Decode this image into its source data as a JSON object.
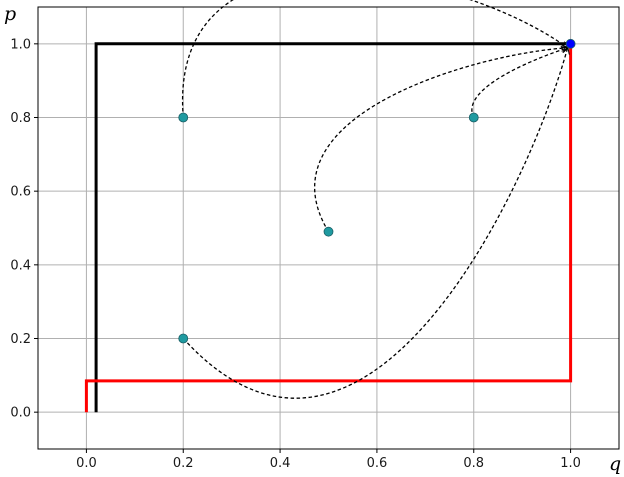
{
  "chart_data": {
    "type": "line",
    "title": "",
    "xlabel": "q",
    "ylabel": "p",
    "xlim": [
      -0.1,
      1.1
    ],
    "ylim": [
      -0.1,
      1.1
    ],
    "x_ticks": [
      "0.0",
      "0.2",
      "0.4",
      "0.6",
      "0.8",
      "1.0"
    ],
    "y_ticks": [
      "0.0",
      "0.2",
      "0.4",
      "0.6",
      "0.8",
      "1.0"
    ],
    "grid": true,
    "legend": "none",
    "series": [
      {
        "color": "#000000",
        "style": "solid",
        "points": [
          [
            0.02,
            0.0
          ],
          [
            0.02,
            1.0
          ],
          [
            1.0,
            1.0
          ]
        ]
      },
      {
        "color": "#ff0000",
        "style": "solid",
        "points": [
          [
            0.0,
            0.0
          ],
          [
            0.0,
            0.085
          ],
          [
            1.0,
            0.085
          ],
          [
            1.0,
            1.0
          ]
        ]
      }
    ],
    "points": [
      {
        "x": 0.2,
        "y": 0.8,
        "color": "#1f9aa0"
      },
      {
        "x": 0.8,
        "y": 0.8,
        "color": "#1f9aa0"
      },
      {
        "x": 0.5,
        "y": 0.49,
        "color": "#1f9aa0"
      },
      {
        "x": 0.2,
        "y": 0.2,
        "color": "#1f9aa0"
      },
      {
        "x": 1.0,
        "y": 1.0,
        "color": "#0000ff"
      }
    ],
    "arrows": [
      {
        "from": [
          0.2,
          0.8
        ],
        "to": [
          1.0,
          1.0
        ],
        "style": "dashed"
      },
      {
        "from": [
          0.5,
          0.49
        ],
        "to": [
          1.0,
          1.0
        ],
        "style": "dashed"
      },
      {
        "from": [
          0.8,
          0.8
        ],
        "to": [
          1.0,
          1.0
        ],
        "style": "dashed"
      },
      {
        "from": [
          0.2,
          0.2
        ],
        "to": [
          1.0,
          1.0
        ],
        "style": "dashed"
      }
    ]
  }
}
